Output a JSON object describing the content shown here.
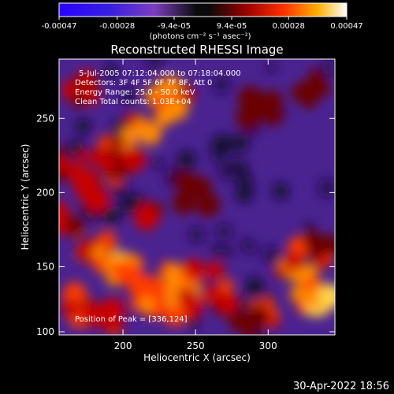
{
  "chart_data": {
    "type": "heatmap",
    "title": "Reconstructed RHESSI Image",
    "xlabel": "Heliocentric X (arcsec)",
    "ylabel": "Heliocentric Y (arcsec)",
    "xlim": [
      156,
      346
    ],
    "ylim": [
      104,
      290
    ],
    "x_ticks": [
      200,
      250,
      300
    ],
    "y_ticks": [
      100,
      150,
      200,
      250
    ],
    "colorbar": {
      "range": [
        -0.00047,
        0.00047
      ],
      "tick_values": [
        -0.00047,
        -0.00028,
        -9.4e-05,
        9.4e-05,
        0.00028,
        0.00047
      ],
      "tick_labels": [
        "-0.00047",
        "-0.00028",
        "-9.4e-05",
        "9.4e-05",
        "0.00028",
        "0.00047"
      ],
      "unit_label": "(photons cm⁻² s⁻¹ asec⁻²)"
    },
    "annotations": [
      "5-Jul-2005 07:12:04.000 to 07:18:04.000",
      "Detectors: 3F 4F 5F 6F 7F 8F, Att 0",
      "Energy Range: 25.0 - 50.0 keV",
      "Clean     Total counts: 1.03E+04"
    ],
    "peak_label": "Position of Peak = [336,124]",
    "peak": [
      336,
      124
    ],
    "timestamp": "30-Apr-2022 18:56"
  }
}
